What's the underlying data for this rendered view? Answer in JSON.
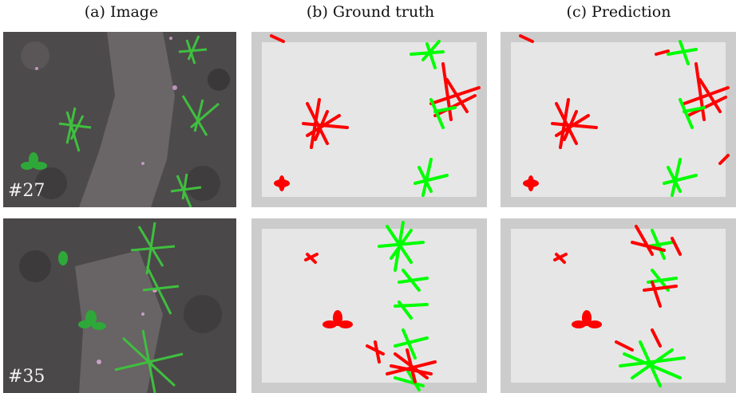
{
  "headers": {
    "image": "(a) Image",
    "ground_truth": "(b) Ground truth",
    "prediction": "(c) Prediction"
  },
  "rows": [
    {
      "sample_label": "#27"
    },
    {
      "sample_label": "#35"
    }
  ],
  "colors": {
    "crop": "#00ff00",
    "weed": "#ff0000",
    "background_mask": "#e6e6e6",
    "mask_border": "#cccccc"
  }
}
